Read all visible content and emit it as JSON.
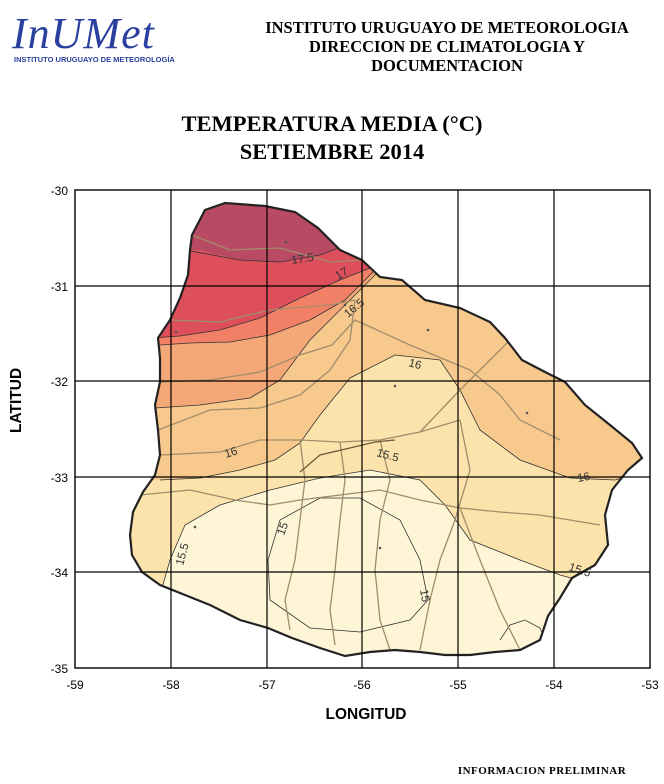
{
  "header": {
    "logo_text": "InUMet",
    "logo_subtitle": "INSTITUTO URUGUAYO DE METEOROLOGÍA",
    "institute_line1": "INSTITUTO URUGUAYO DE METEOROLOGIA",
    "institute_line2": "DIRECCION DE CLIMATOLOGIA Y DOCUMENTACION"
  },
  "map": {
    "title_line1": "TEMPERATURA MEDIA (°C)",
    "title_line2": "SETIEMBRE 2014",
    "xlabel": "LONGITUD",
    "ylabel": "LATITUD",
    "x_ticks": [
      "-59",
      "-58",
      "-57",
      "-56",
      "-55",
      "-54",
      "-53"
    ],
    "y_ticks": [
      "-30",
      "-31",
      "-32",
      "-33",
      "-34",
      "-35"
    ],
    "contour_labels": [
      "17.5",
      "17",
      "16.5",
      "16",
      "16",
      "16",
      "15.5",
      "15.5",
      "15.5",
      "15",
      "15"
    ],
    "colors": {
      "above_17_5": "#b94a63",
      "17_to_17_5": "#dd4f5b",
      "16_5_to_17": "#f28066",
      "16_to_16_5": "#f4a877",
      "15_5_to_16": "#f8c98d",
      "15_to_15_5": "#fbe3ab",
      "below_15": "#fdf5d5",
      "grid": "#000000",
      "boundary": "#222222",
      "departments": "#a08d6a"
    }
  },
  "footer": {
    "note": "INFORMACION PRELIMINAR"
  }
}
